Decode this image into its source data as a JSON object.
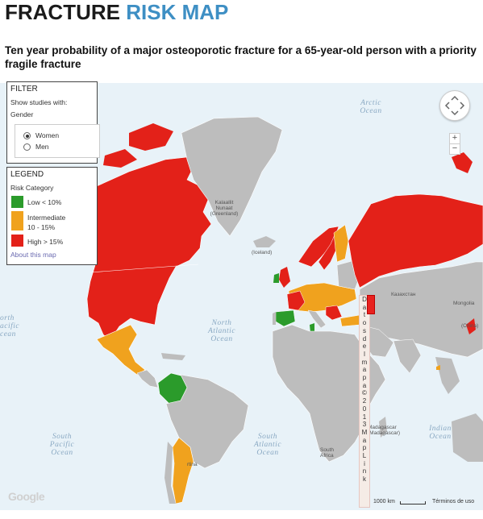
{
  "title": {
    "part1": "FRACTURE",
    "part2": "RISK MAP"
  },
  "subtitle": "Ten year probability of a major osteoporotic fracture for a 65-year-old person with a priority fragile fracture",
  "filter": {
    "heading": "FILTER",
    "show_label": "Show studies with:",
    "gender_label": "Gender",
    "options": [
      "Women",
      "Men"
    ],
    "selected": "Women"
  },
  "legend": {
    "heading": "LEGEND",
    "category_label": "Risk Category",
    "items": [
      {
        "label": "Low < 10%",
        "color": "#2b9b2b"
      },
      {
        "label": "Intermediate",
        "label2": "10 - 15%",
        "color": "#f0a21e"
      },
      {
        "label": "High > 15%",
        "color": "#e32119"
      }
    ],
    "about_link": "About this map"
  },
  "map": {
    "ocean_labels": {
      "arctic": "Arctic\nOcean",
      "north_atlantic": "North\nAtlantic\nOcean",
      "north_pacific": "orth\nacific\ncean",
      "south_pacific": "South\nPacific\nOcean",
      "south_atlantic": "South\nAtlantic\nOcean",
      "indian": "Indian\nOcean"
    },
    "place_labels": {
      "greenland": "Kalaallit\nNunaat\n(Greenland)",
      "iceland": "(Iceland)",
      "kazakhstan": "Казахстан",
      "mongolia": "Mongolia",
      "china": "(China)",
      "madagascar": "Madagascar\n(Madagascar)",
      "south_africa": "South\nAfrica",
      "argentina": "rtina"
    },
    "side_strip": "Dat os del mapa ©2013 Map Link",
    "google_logo": "Google",
    "scale": "1000 km",
    "terms": "Términos de uso",
    "zoom_in": "+",
    "zoom_out": "−"
  },
  "colors": {
    "low": "#2b9b2b",
    "intermediate": "#f0a21e",
    "high": "#e32119",
    "nodata": "#bdbdbd",
    "water": "#e8f2f8",
    "title_accent": "#3e8fc4"
  }
}
